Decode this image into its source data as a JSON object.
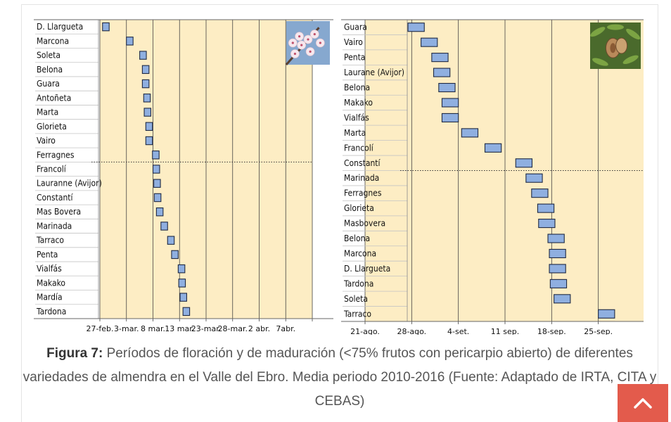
{
  "chart_data": [
    {
      "type": "bar",
      "title": "",
      "xlabel": "",
      "ylabel": "",
      "x_tick_labels": [
        "27-feb.",
        "3-mar.",
        "8 mar.",
        "13 mar.",
        "23-mar.",
        "28-mar.",
        "2 abr.",
        "7abr."
      ],
      "categories": [
        "D. Llargueta",
        "Marcona",
        "Soleta",
        "Belona",
        "Guara",
        "Antoñeta",
        "Marta",
        "Glorieta",
        "Vairo",
        "Ferragnes",
        "Francolí",
        "Lauranne (Avijor)",
        "Constantí",
        "Mas Bovera",
        "Marinada",
        "Tarraco",
        "Penta",
        "Vialfás",
        "Makako",
        "Mardía",
        "Tardona"
      ],
      "start": [
        0.1,
        1.0,
        1.5,
        1.6,
        1.6,
        1.65,
        1.67,
        1.73,
        1.73,
        1.98,
        2.0,
        2.03,
        2.05,
        2.13,
        2.3,
        2.55,
        2.7,
        2.95,
        2.97,
        3.02,
        3.13
      ],
      "end": [
        0.35,
        1.25,
        1.75,
        1.85,
        1.85,
        1.9,
        1.92,
        1.98,
        1.98,
        2.23,
        2.25,
        2.28,
        2.3,
        2.38,
        2.55,
        2.8,
        2.95,
        3.2,
        3.22,
        3.27,
        3.38
      ],
      "divider_after": "Ferragnes",
      "photo": "almond-blossom"
    },
    {
      "type": "bar",
      "title": "",
      "xlabel": "",
      "ylabel": "",
      "x_tick_labels": [
        "21-ago.",
        "28-ago.",
        "4-set.",
        "11 sep.",
        "18-sep.",
        "25-sep."
      ],
      "categories": [
        "Guara",
        "Vairo",
        "Penta",
        "Laurane (Avijor)",
        "Belona",
        "Makako",
        "Vialfás",
        "Marta",
        "Francolí",
        "Constantí",
        "Marinada",
        "Ferragnes",
        "Glorieta",
        "Masbovera",
        "Belona",
        "Marcona",
        "D. Llargueta",
        "Tardona",
        "Soleta",
        "Tarraco"
      ],
      "start": [
        0.92,
        1.2,
        1.43,
        1.47,
        1.58,
        1.65,
        1.65,
        2.07,
        2.57,
        3.23,
        3.45,
        3.57,
        3.7,
        3.72,
        3.92,
        3.95,
        3.95,
        3.97,
        4.05,
        5.0
      ],
      "end": [
        1.27,
        1.55,
        1.78,
        1.82,
        1.93,
        2.0,
        2.0,
        2.42,
        2.92,
        3.58,
        3.8,
        3.92,
        4.05,
        4.07,
        4.27,
        4.3,
        4.3,
        4.32,
        4.4,
        5.35
      ],
      "divider_after": "Constantí",
      "photo": "almond-fruit"
    }
  ],
  "caption": {
    "label": "Figura 7:",
    "text": " Períodos de floración y de maduración (<75% frutos con pericarpio abierto) de diferentes variedades de almendra en el Valle del Ebro. Media periodo 2010-2016 (Fuente: Adaptado de IRTA, CITA y CEBAS)"
  },
  "scroll_top_icon": "chevron-up-icon",
  "colors": {
    "bar_fill": "#8fafe0",
    "bar_stroke": "#1f2a44",
    "plot_bg": "#fdedc4",
    "accent": "#e35b4c"
  }
}
